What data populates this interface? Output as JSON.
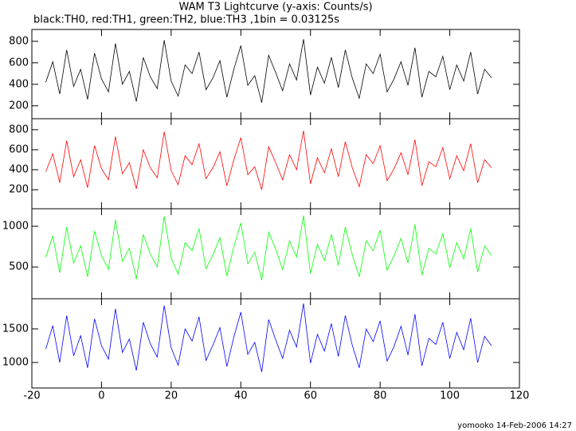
{
  "title": "WAM T3 Lightcurve (y-axis: Counts/s)",
  "subtitle": "black:TH0, red:TH1, green:TH2, blue:TH3 ,1bin = 0.03125s",
  "footer": "yomooko 14-Feb-2006 14:27",
  "chart_data": [
    {
      "type": "line",
      "xlim": [
        -20,
        120
      ],
      "xticks": [
        -20,
        0,
        20,
        40,
        60,
        80,
        100,
        120
      ],
      "ylim": [
        80,
        910
      ],
      "yticks": [
        200,
        400,
        600,
        800
      ],
      "x": [
        -16,
        -14,
        -12,
        -10,
        -8,
        -6,
        -4,
        -2,
        0,
        2,
        4,
        6,
        8,
        10,
        12,
        14,
        16,
        18,
        20,
        22,
        24,
        26,
        28,
        30,
        32,
        34,
        36,
        38,
        40,
        42,
        44,
        46,
        48,
        50,
        52,
        54,
        56,
        58,
        60,
        62,
        64,
        66,
        68,
        70,
        72,
        74,
        76,
        78,
        80,
        82,
        84,
        86,
        88,
        90,
        92,
        94,
        96,
        98,
        100,
        102,
        104,
        106,
        108,
        110,
        112
      ],
      "series": [
        {
          "name": "TH0",
          "color": "#000000",
          "values": [
            420,
            610,
            310,
            720,
            380,
            540,
            260,
            690,
            450,
            330,
            780,
            400,
            520,
            240,
            650,
            470,
            360,
            810,
            430,
            290,
            580,
            500,
            700,
            350,
            460,
            620,
            280,
            540,
            760,
            390,
            480,
            230,
            670,
            510,
            340,
            590,
            440,
            820,
            300,
            560,
            410,
            650,
            370,
            720,
            460,
            270,
            590,
            500,
            680,
            330,
            450,
            610,
            390,
            740,
            280,
            520,
            470,
            660,
            350,
            580,
            430,
            700,
            310,
            540,
            460
          ]
        }
      ]
    },
    {
      "type": "line",
      "xlim": [
        -20,
        120
      ],
      "xticks": [
        -20,
        0,
        20,
        40,
        60,
        80,
        100,
        120
      ],
      "ylim": [
        10,
        910
      ],
      "yticks": [
        200,
        400,
        600,
        800
      ],
      "x": [
        -16,
        -14,
        -12,
        -10,
        -8,
        -6,
        -4,
        -2,
        0,
        2,
        4,
        6,
        8,
        10,
        12,
        14,
        16,
        18,
        20,
        22,
        24,
        26,
        28,
        30,
        32,
        34,
        36,
        38,
        40,
        42,
        44,
        46,
        48,
        50,
        52,
        54,
        56,
        58,
        60,
        62,
        64,
        66,
        68,
        70,
        72,
        74,
        76,
        78,
        80,
        82,
        84,
        86,
        88,
        90,
        92,
        94,
        96,
        98,
        100,
        102,
        104,
        106,
        108,
        110,
        112
      ],
      "series": [
        {
          "name": "TH1",
          "color": "#ff0000",
          "values": [
            380,
            560,
            270,
            690,
            330,
            500,
            220,
            640,
            410,
            300,
            730,
            360,
            470,
            210,
            600,
            420,
            320,
            780,
            390,
            250,
            540,
            450,
            660,
            310,
            420,
            580,
            240,
            500,
            720,
            350,
            430,
            200,
            630,
            470,
            300,
            550,
            400,
            790,
            260,
            520,
            370,
            610,
            330,
            680,
            420,
            230,
            550,
            460,
            640,
            290,
            410,
            570,
            350,
            700,
            240,
            480,
            430,
            620,
            310,
            540,
            390,
            660,
            270,
            500,
            420
          ]
        }
      ]
    },
    {
      "type": "line",
      "xlim": [
        -20,
        120
      ],
      "xticks": [
        -20,
        0,
        20,
        40,
        60,
        80,
        100,
        120
      ],
      "ylim": [
        110,
        1215
      ],
      "yticks": [
        500,
        1000
      ],
      "x": [
        -16,
        -14,
        -12,
        -10,
        -8,
        -6,
        -4,
        -2,
        0,
        2,
        4,
        6,
        8,
        10,
        12,
        14,
        16,
        18,
        20,
        22,
        24,
        26,
        28,
        30,
        32,
        34,
        36,
        38,
        40,
        42,
        44,
        46,
        48,
        50,
        52,
        54,
        56,
        58,
        60,
        62,
        64,
        66,
        68,
        70,
        72,
        74,
        76,
        78,
        80,
        82,
        84,
        86,
        88,
        90,
        92,
        94,
        96,
        98,
        100,
        102,
        104,
        106,
        108,
        110,
        112
      ],
      "series": [
        {
          "name": "TH2",
          "color": "#00ff00",
          "values": [
            620,
            880,
            430,
            990,
            550,
            760,
            380,
            940,
            640,
            470,
            1080,
            570,
            730,
            350,
            900,
            660,
            500,
            1120,
            610,
            410,
            800,
            700,
            970,
            480,
            650,
            860,
            390,
            750,
            1040,
            540,
            680,
            340,
            930,
            720,
            470,
            820,
            620,
            1130,
            420,
            780,
            580,
            900,
            520,
            990,
            650,
            380,
            820,
            700,
            950,
            460,
            640,
            850,
            550,
            1020,
            400,
            730,
            660,
            910,
            490,
            800,
            600,
            970,
            440,
            760,
            640
          ]
        }
      ]
    },
    {
      "type": "line",
      "xlim": [
        -20,
        120
      ],
      "xticks": [
        -20,
        0,
        20,
        40,
        60,
        80,
        100,
        120
      ],
      "ylim": [
        620,
        1950
      ],
      "yticks": [
        1000,
        1500
      ],
      "x": [
        -16,
        -14,
        -12,
        -10,
        -8,
        -6,
        -4,
        -2,
        0,
        2,
        4,
        6,
        8,
        10,
        12,
        14,
        16,
        18,
        20,
        22,
        24,
        26,
        28,
        30,
        32,
        34,
        36,
        38,
        40,
        42,
        44,
        46,
        48,
        50,
        52,
        54,
        56,
        58,
        60,
        62,
        64,
        66,
        68,
        70,
        72,
        74,
        76,
        78,
        80,
        82,
        84,
        86,
        88,
        90,
        92,
        94,
        96,
        98,
        100,
        102,
        104,
        106,
        108,
        110,
        112
      ],
      "series": [
        {
          "name": "TH3",
          "color": "#0000ff",
          "values": [
            1200,
            1550,
            1000,
            1700,
            1100,
            1400,
            920,
            1650,
            1250,
            1050,
            1800,
            1150,
            1350,
            880,
            1600,
            1280,
            1080,
            1850,
            1220,
            960,
            1500,
            1320,
            1680,
            1030,
            1260,
            1520,
            940,
            1380,
            1750,
            1120,
            1300,
            860,
            1640,
            1340,
            1060,
            1480,
            1230,
            1880,
            990,
            1420,
            1170,
            1580,
            1090,
            1700,
            1260,
            920,
            1500,
            1310,
            1620,
            1020,
            1240,
            1540,
            1110,
            1720,
            950,
            1360,
            1270,
            1600,
            1060,
            1450,
            1190,
            1660,
            1000,
            1390,
            1250
          ]
        }
      ]
    }
  ]
}
